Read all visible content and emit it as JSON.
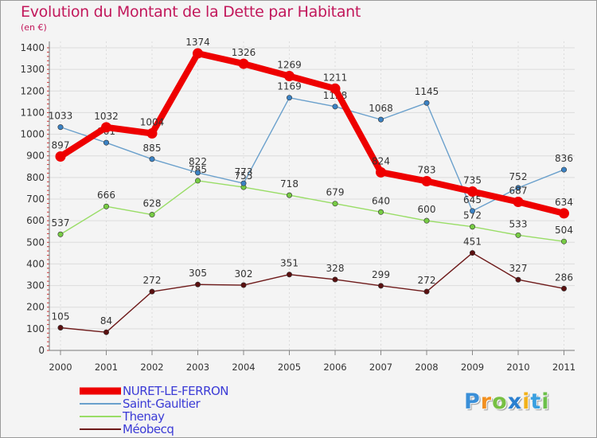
{
  "chart_data": {
    "type": "line",
    "title": "Evolution du Montant de la Dette par Habitant",
    "subtitle": "(en €)",
    "xlabel": "",
    "ylabel": "",
    "ylim": [
      0,
      1400
    ],
    "yticks": [
      0,
      100,
      200,
      300,
      400,
      500,
      600,
      700,
      800,
      900,
      1000,
      1100,
      1200,
      1300,
      1400
    ],
    "categories": [
      "2000",
      "2001",
      "2002",
      "2003",
      "2004",
      "2005",
      "2006",
      "2007",
      "2008",
      "2009",
      "2010",
      "2011"
    ],
    "series": [
      {
        "name": "Méobecq",
        "color": "#6e1a1a",
        "marker": "#5a1010",
        "values": [
          105,
          84,
          272,
          305,
          302,
          351,
          328,
          299,
          272,
          451,
          327,
          286
        ]
      },
      {
        "name": "Thenay",
        "color": "#99dd66",
        "marker": "#77cc44",
        "values": [
          537,
          666,
          628,
          785,
          755,
          718,
          679,
          640,
          600,
          572,
          533,
          504
        ]
      },
      {
        "name": "Saint-Gaultier",
        "color": "#6aa0cc",
        "marker": "#3b82c4",
        "values": [
          1033,
          961,
          885,
          822,
          773,
          1169,
          1128,
          1068,
          1145,
          645,
          752,
          836
        ]
      },
      {
        "name": "NURET-LE-FERRON",
        "color": "#ee0000",
        "marker": "#ee0000",
        "values": [
          897,
          1032,
          1004,
          1374,
          1326,
          1269,
          1211,
          824,
          783,
          735,
          687,
          634
        ]
      }
    ],
    "legend": [
      "NURET-LE-FERRON",
      "Saint-Gaultier",
      "Thenay",
      "Méobecq"
    ],
    "legend_position": "bottom-left",
    "grid": true
  },
  "brand": {
    "letters": [
      "P",
      "r",
      "o",
      "x",
      "i",
      "t",
      "i"
    ],
    "colors": [
      "#3a8fd8",
      "#f29020",
      "#77c043",
      "#2a7fd0",
      "#f2b21a",
      "#3aa0e0",
      "#6cc04a"
    ]
  }
}
